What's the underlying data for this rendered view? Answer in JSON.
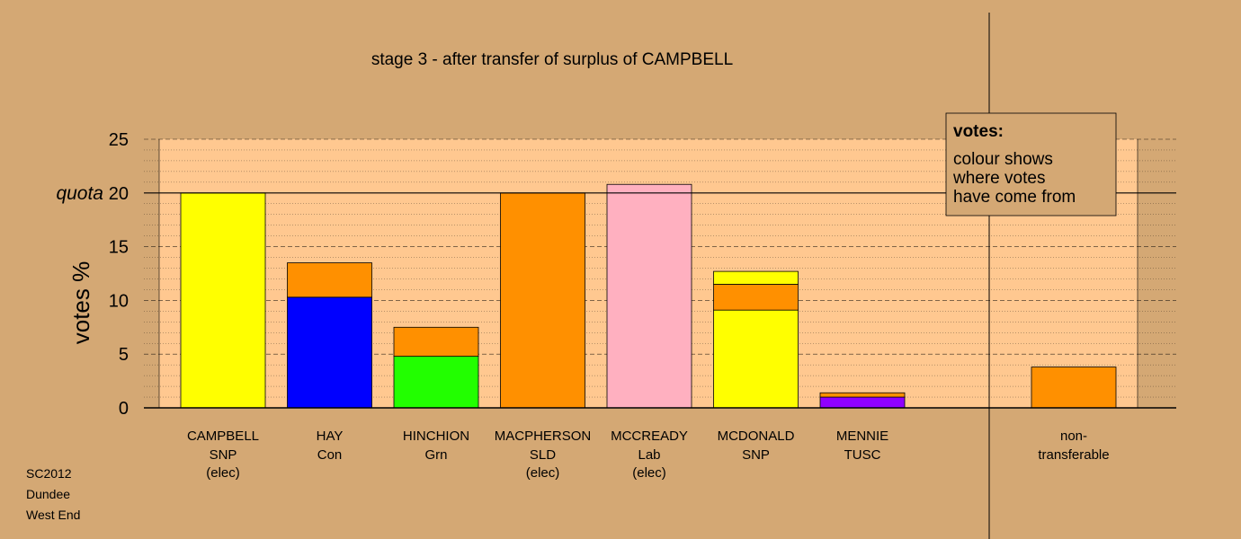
{
  "chart_data": {
    "type": "bar",
    "stacked": true,
    "title": "stage 3 - after transfer of surplus of CAMPBELL",
    "ylabel": "votes %",
    "ylim": [
      0,
      25
    ],
    "yticks": [
      0,
      5,
      10,
      15,
      20,
      25
    ],
    "quota": {
      "value": 20,
      "label": "quota"
    },
    "grid": true,
    "categories": [
      {
        "name": "CAMPBELL",
        "party": "SNP",
        "status": "(elec)",
        "segments": [
          {
            "color": "#ffff00",
            "value": 20.0
          }
        ]
      },
      {
        "name": "HAY",
        "party": "Con",
        "status": "",
        "segments": [
          {
            "color": "#0000ff",
            "value": 10.3
          },
          {
            "color": "#ff9000",
            "value": 3.2
          }
        ]
      },
      {
        "name": "HINCHION",
        "party": "Grn",
        "status": "",
        "segments": [
          {
            "color": "#22ff00",
            "value": 4.8
          },
          {
            "color": "#ff9000",
            "value": 2.7
          }
        ]
      },
      {
        "name": "MACPHERSON",
        "party": "SLD",
        "status": "(elec)",
        "segments": [
          {
            "color": "#ff9000",
            "value": 20.0
          }
        ]
      },
      {
        "name": "MCCREADY",
        "party": "Lab",
        "status": "(elec)",
        "segments": [
          {
            "color": "#ffb0c0",
            "value": 20.8
          }
        ]
      },
      {
        "name": "MCDONALD",
        "party": "SNP",
        "status": "",
        "segments": [
          {
            "color": "#ffff00",
            "value": 9.1
          },
          {
            "color": "#ff9000",
            "value": 2.4
          },
          {
            "color": "#ffff00",
            "value": 1.2
          }
        ]
      },
      {
        "name": "MENNIE",
        "party": "TUSC",
        "status": "",
        "segments": [
          {
            "color": "#9000ff",
            "value": 1.0
          },
          {
            "color": "#ff9000",
            "value": 0.4
          }
        ]
      }
    ],
    "nontransferable": {
      "label_line1": "non-",
      "label_line2": "transferable",
      "segments": [
        {
          "color": "#ff9000",
          "value": 3.8
        }
      ]
    },
    "legend": {
      "position": "top-right",
      "title": "votes:",
      "lines": [
        "colour shows",
        "where votes",
        "have come from"
      ]
    }
  },
  "footer": {
    "lines": [
      "SC2012",
      "Dundee",
      "West End"
    ]
  },
  "colors": {
    "background": "#d4a874",
    "plot_area": "#ffc890"
  }
}
